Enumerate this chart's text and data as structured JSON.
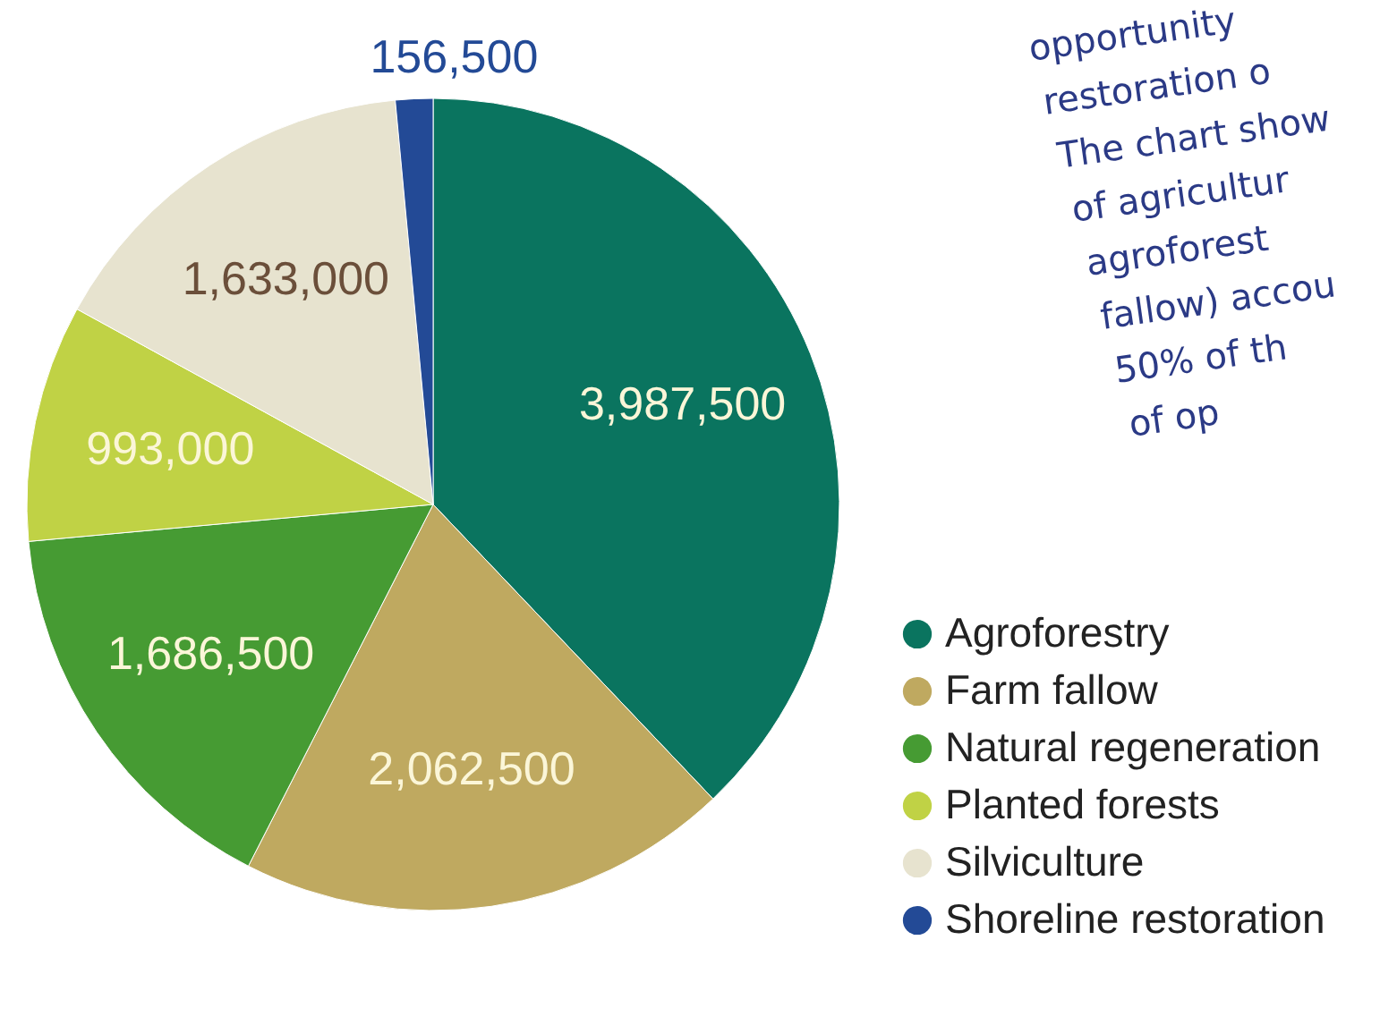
{
  "chart_data": {
    "type": "pie",
    "categories": [
      "Agroforestry",
      "Farm fallow",
      "Natural regeneration",
      "Planted forests",
      "Silviculture",
      "Shoreline restoration"
    ],
    "values": [
      3987500,
      2062500,
      1686500,
      993000,
      1633000,
      156500
    ],
    "colors": [
      "#0a745f",
      "#bfa960",
      "#469b33",
      "#c0d245",
      "#e7e3cf",
      "#234a96"
    ],
    "value_labels": [
      "3,987,500",
      "2,062,500",
      "1,686,500",
      "993,000",
      "1,633,000",
      "156,500"
    ],
    "legend": "bottom right",
    "annotations": [
      "opportunity",
      "restoration o",
      "The chart show",
      "of agricultur",
      "agroforest",
      "fallow) accou",
      "50% of th",
      "of op"
    ]
  }
}
